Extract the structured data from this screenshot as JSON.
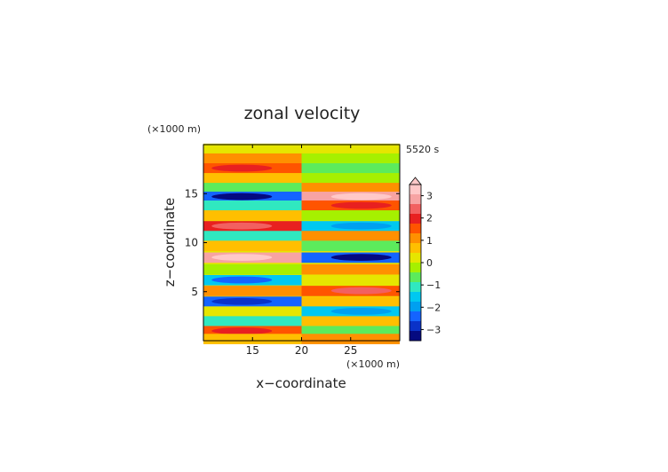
{
  "chart_data": {
    "type": "heatmap",
    "title": "zonal velocity",
    "time_label": "5520 s",
    "xlabel": "x−coordinate",
    "ylabel": "z−coordinate",
    "x_unit": "(×1000 m)",
    "z_unit": "(×1000 m)",
    "xlim": [
      10,
      30
    ],
    "ylim": [
      0,
      20
    ],
    "x_ticks": [
      15,
      20,
      25
    ],
    "y_ticks": [
      5,
      10,
      15
    ],
    "colorbar": {
      "ticks": [
        3,
        2,
        1,
        0,
        -1,
        -2,
        -3
      ],
      "range": [
        -3.5,
        3.5
      ],
      "extend": "max",
      "colors": [
        "#ffc8c8",
        "#f7a3a3",
        "#f26060",
        "#e82020",
        "#ff5400",
        "#ff9000",
        "#ffbf00",
        "#e6e600",
        "#a6f000",
        "#5ceb5c",
        "#30e8c0",
        "#00c8f0",
        "#00a0f0",
        "#1464ff",
        "#0a32c8",
        "#050a80"
      ]
    },
    "grid": false,
    "bands": [
      {
        "z": 19.6,
        "left": 0.3,
        "right": 0.3
      },
      {
        "z": 18.6,
        "left": 0.9,
        "right": -0.4
      },
      {
        "z": 17.6,
        "left": 1.5,
        "right": -0.8
      },
      {
        "z": 16.6,
        "left": 0.6,
        "right": -0.2
      },
      {
        "z": 15.6,
        "left": -0.7,
        "right": 0.9
      },
      {
        "z": 14.7,
        "left": -2.6,
        "right": 2.7
      },
      {
        "z": 13.8,
        "left": -1.2,
        "right": 1.4
      },
      {
        "z": 12.8,
        "left": 0.6,
        "right": -0.4
      },
      {
        "z": 11.7,
        "left": 1.8,
        "right": -1.5
      },
      {
        "z": 10.7,
        "left": -0.9,
        "right": 1.2
      },
      {
        "z": 9.7,
        "left": 0.8,
        "right": -0.6
      },
      {
        "z": 8.5,
        "left": 2.8,
        "right": -2.6
      },
      {
        "z": 7.3,
        "left": -0.4,
        "right": 1.0
      },
      {
        "z": 6.2,
        "left": -1.6,
        "right": 0.2
      },
      {
        "z": 5.1,
        "left": 0.9,
        "right": 1.6
      },
      {
        "z": 4.0,
        "left": -2.4,
        "right": 0.6
      },
      {
        "z": 3.0,
        "left": 0.4,
        "right": -1.4
      },
      {
        "z": 2.0,
        "left": -1.2,
        "right": 0.8
      },
      {
        "z": 1.0,
        "left": 1.5,
        "right": -0.5
      },
      {
        "z": 0.2,
        "left": 0.5,
        "right": 1.2
      }
    ]
  }
}
